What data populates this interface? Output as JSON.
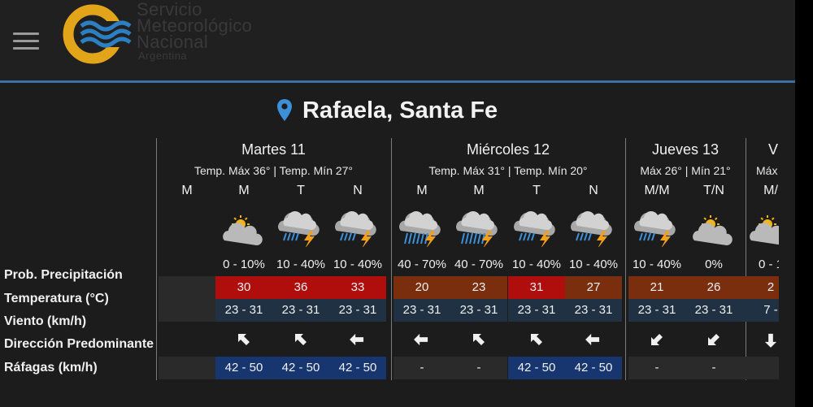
{
  "header": {
    "brand_line1": "Servicio",
    "brand_line2": "Meteorológico",
    "brand_line3": "Nacional",
    "brand_line4": "Argentina",
    "accent_color": "#3a6fa5"
  },
  "location": {
    "title": "Rafaela, Santa Fe",
    "icon": "map-pin-icon"
  },
  "row_labels": {
    "precip": "Prob. Precipitación",
    "temp": "Temperatura (°C)",
    "wind": "Viento (km/h)",
    "direction": "Dirección Predominante",
    "gusts": "Ráfagas (km/h)"
  },
  "days": [
    {
      "name": "Martes 11",
      "temps": "Temp. Máx 36° | Temp. Mín 27°"
    },
    {
      "name": "Miércoles 12",
      "temps": "Temp. Máx 31° | Temp. Mín 20°"
    },
    {
      "name": "Jueves 13",
      "temps": "Máx 26° | Mín 21°"
    },
    {
      "name": "V",
      "temps": "Máx"
    }
  ],
  "columns": [
    {
      "period": "M",
      "icon": "",
      "precip": "",
      "temp": "",
      "wind": "",
      "dir": "",
      "gust": ""
    },
    {
      "period": "M",
      "icon": "partly-cloudy-icon",
      "precip": "0 - 10%",
      "temp": "30",
      "wind": "23 - 31",
      "dir": "arrow-up-left-icon",
      "gust": "42 - 50"
    },
    {
      "period": "T",
      "icon": "thunderstorm-rain-icon",
      "precip": "10 - 40%",
      "temp": "36",
      "wind": "23 - 31",
      "dir": "arrow-up-left-icon",
      "gust": "42 - 50"
    },
    {
      "period": "N",
      "icon": "thunderstorm-rain-icon",
      "precip": "10 - 40%",
      "temp": "33",
      "wind": "23 - 31",
      "dir": "arrow-left-icon",
      "gust": "42 - 50"
    },
    {
      "period": "M",
      "icon": "heavy-thunderstorm-icon",
      "precip": "40 - 70%",
      "temp": "20",
      "wind": "23 - 31",
      "dir": "arrow-left-icon",
      "gust": "-"
    },
    {
      "period": "M",
      "icon": "heavy-thunderstorm-icon",
      "precip": "40 - 70%",
      "temp": "23",
      "wind": "23 - 31",
      "dir": "arrow-up-left-icon",
      "gust": "-"
    },
    {
      "period": "T",
      "icon": "thunderstorm-rain-icon",
      "precip": "10 - 40%",
      "temp": "31",
      "wind": "23 - 31",
      "dir": "arrow-up-left-icon",
      "gust": "42 - 50"
    },
    {
      "period": "N",
      "icon": "thunderstorm-rain-icon",
      "precip": "10 - 40%",
      "temp": "27",
      "wind": "23 - 31",
      "dir": "arrow-left-icon",
      "gust": "42 - 50"
    },
    {
      "period": "M/M",
      "icon": "thunderstorm-rain-icon",
      "precip": "10 - 40%",
      "temp": "21",
      "wind": "23 - 31",
      "dir": "arrow-down-left-icon",
      "gust": "-"
    },
    {
      "period": "T/N",
      "icon": "partly-cloudy-icon",
      "precip": "0%",
      "temp": "26",
      "wind": "23 - 31",
      "dir": "arrow-down-left-icon",
      "gust": "-"
    },
    {
      "period": "M/",
      "icon": "partly-cloudy-icon",
      "precip": "0 - 1",
      "temp": "2",
      "wind": "7 -",
      "dir": "arrow-down-icon",
      "gust": ""
    }
  ],
  "colors": {
    "temp_hot": "#b00d0d",
    "temp_warm": "#7a2e0d",
    "wind_bg": "#1f3142",
    "gust_bg": "#17356f",
    "empty_bg": "#2a2a2b"
  }
}
